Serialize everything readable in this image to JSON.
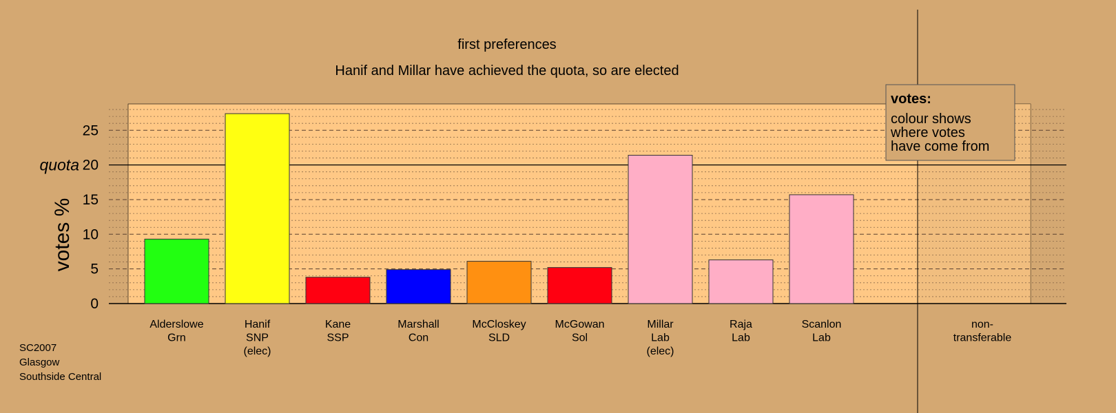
{
  "chart_data": {
    "type": "bar",
    "title": "first preferences",
    "subtitle": "Hanif and Millar have achieved the quota, so are elected",
    "ylabel": "votes %",
    "quota_label": "quota",
    "quota": 20,
    "ylim": [
      0,
      28.8
    ],
    "yticks": [
      0,
      5,
      10,
      15,
      20,
      25
    ],
    "categories": [
      [
        "Alderslowe",
        "Grn"
      ],
      [
        "Hanif",
        "SNP",
        "(elec)"
      ],
      [
        "Kane",
        "SSP"
      ],
      [
        "Marshall",
        "Con"
      ],
      [
        "McCloskey",
        "SLD"
      ],
      [
        "McGowan",
        "Sol"
      ],
      [
        "Millar",
        "Lab",
        "(elec)"
      ],
      [
        "Raja",
        "Lab"
      ],
      [
        "Scanlon",
        "Lab"
      ]
    ],
    "values": [
      9.3,
      27.4,
      3.8,
      4.9,
      6.1,
      5.2,
      21.4,
      6.3,
      15.7
    ],
    "colors": [
      "#22ff11",
      "#ffff11",
      "#ff0011",
      "#0000ff",
      "#ff9011",
      "#ff0011",
      "#ffaec6",
      "#ffaec6",
      "#ffaec6"
    ],
    "nontransferable_label": [
      "non-",
      "transferable"
    ],
    "legend": {
      "title": "votes:",
      "lines": [
        "colour shows",
        "where votes",
        "have come from"
      ],
      "position": "top-right"
    },
    "grid": true
  },
  "footer": {
    "line1": "SC2007",
    "line2": "Glasgow",
    "line3": "Southside Central"
  },
  "colors": {
    "background": "#d4a872",
    "plot_area": "#ffc885",
    "nontransferable_area": "#e8b87c"
  }
}
